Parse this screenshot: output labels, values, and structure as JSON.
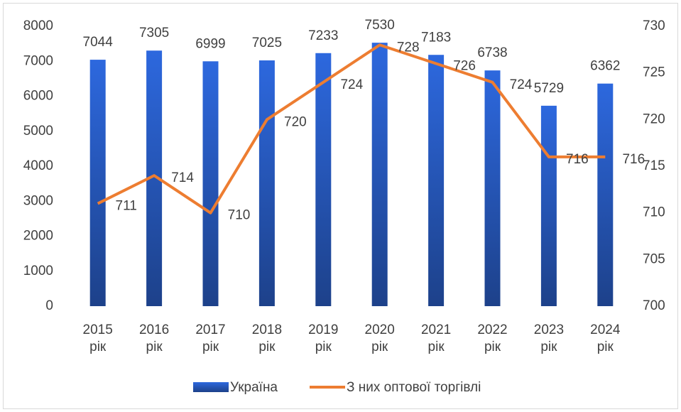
{
  "chart_data": {
    "type": "bar",
    "categories": [
      "2015 рік",
      "2016 рік",
      "2017 рік",
      "2018 рік",
      "2019 рік",
      "2020 рік",
      "2021 рік",
      "2022 рік",
      "2023 рік",
      "2024 рік"
    ],
    "series": [
      {
        "name": "Україна",
        "type": "bar",
        "color": "#2a62d6",
        "values": [
          7044,
          7305,
          6999,
          7025,
          7233,
          7530,
          7183,
          6738,
          5729,
          6362
        ]
      },
      {
        "name": "З них оптової торгівлі",
        "type": "line",
        "axis": "y2",
        "color": "#ed7d31",
        "values": [
          711,
          714,
          710,
          720,
          724,
          728,
          726,
          724,
          716,
          716
        ]
      }
    ],
    "ylim": [
      0,
      8000
    ],
    "yticks": [
      0,
      1000,
      2000,
      3000,
      4000,
      5000,
      6000,
      7000,
      8000
    ],
    "y2lim": [
      700,
      730
    ],
    "y2ticks": [
      700,
      705,
      710,
      715,
      720,
      725,
      730
    ],
    "grid": false,
    "legend": "bottom"
  }
}
